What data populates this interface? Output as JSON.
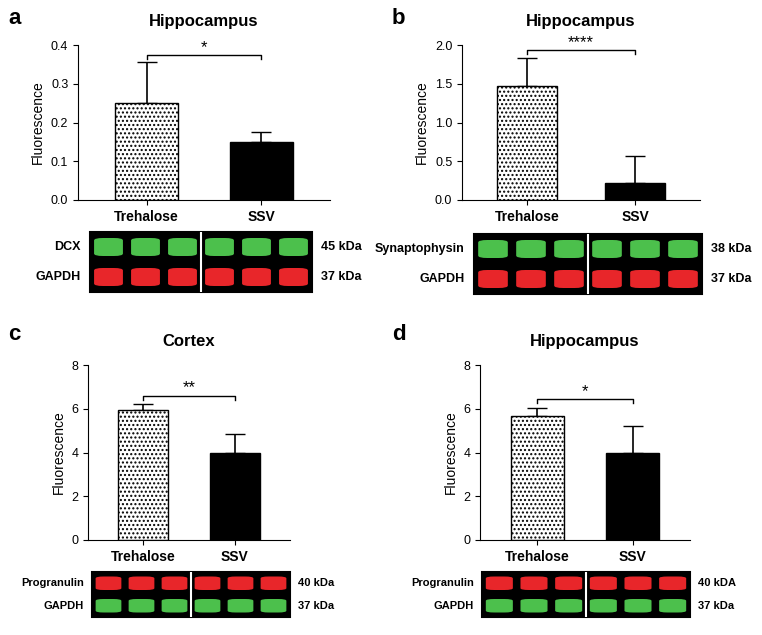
{
  "chart_data": [
    {
      "type": "bar",
      "panel_label": "a",
      "title": "Hippocampus",
      "y_label": "Fluorescence",
      "categories": [
        "Trehalose",
        "SSV"
      ],
      "values": [
        0.25,
        0.15
      ],
      "errors": [
        0.105,
        0.025
      ],
      "colors": [
        "#ffffff",
        "#000000"
      ],
      "ylim": [
        0,
        0.4
      ],
      "yticks": [
        {
          "value": 0,
          "label": "0.0"
        },
        0.1,
        0.2,
        0.3,
        0.4
      ],
      "significance": "*",
      "blot": [
        {
          "protein": "DCX",
          "size": "45 kDa",
          "color": "#4cc04c"
        },
        {
          "protein": "GAPDH",
          "size": "37 kDa",
          "color": "#e8262a"
        }
      ]
    },
    {
      "type": "bar",
      "panel_label": "b",
      "title": "Hippocampus",
      "y_label": "Fluorescence",
      "categories": [
        "Trehalose",
        "SSV"
      ],
      "values": [
        1.47,
        0.22
      ],
      "errors": [
        0.36,
        0.35
      ],
      "colors": [
        "#ffffff",
        "#000000"
      ],
      "ylim": [
        0,
        2
      ],
      "yticks": [
        {
          "value": 0,
          "label": "0.0"
        },
        0.5,
        {
          "value": 1,
          "label": "1.0"
        },
        1.5,
        {
          "value": 2,
          "label": "2.0"
        }
      ],
      "significance": "****",
      "blot": [
        {
          "protein": "Synaptophysin",
          "size": "38 kDa",
          "color": "#4cc04c"
        },
        {
          "protein": "GAPDH",
          "size": "37 kDa",
          "color": "#e8262a"
        }
      ]
    },
    {
      "type": "bar",
      "panel_label": "c",
      "title": "Cortex",
      "y_label": "Fluorescence",
      "categories": [
        "Trehalose",
        "SSV"
      ],
      "values": [
        5.95,
        4.0
      ],
      "errors": [
        0.25,
        0.85
      ],
      "colors": [
        "#ffffff",
        "#000000"
      ],
      "ylim": [
        0,
        8
      ],
      "yticks": [
        0,
        2,
        4,
        6,
        8
      ],
      "significance": "**",
      "blot": [
        {
          "protein": "Progranulin",
          "size": "40 kDa",
          "color": "#e8262a"
        },
        {
          "protein": "GAPDH",
          "size": "37 kDa",
          "color": "#4cc04c"
        }
      ]
    },
    {
      "type": "bar",
      "panel_label": "d",
      "title": "Hippocampus",
      "y_label": "Fluorescence",
      "categories": [
        "Trehalose",
        "SSV"
      ],
      "values": [
        5.65,
        4.0
      ],
      "errors": [
        0.4,
        1.2
      ],
      "colors": [
        "#ffffff",
        "#000000"
      ],
      "ylim": [
        0,
        8
      ],
      "yticks": [
        0,
        2,
        4,
        6,
        8
      ],
      "significance": "*",
      "blot": [
        {
          "protein": "Progranulin",
          "size": "40 kDA",
          "color": "#e8262a"
        },
        {
          "protein": "GAPDH",
          "size": "37 kDa",
          "color": "#4cc04c"
        }
      ]
    }
  ]
}
